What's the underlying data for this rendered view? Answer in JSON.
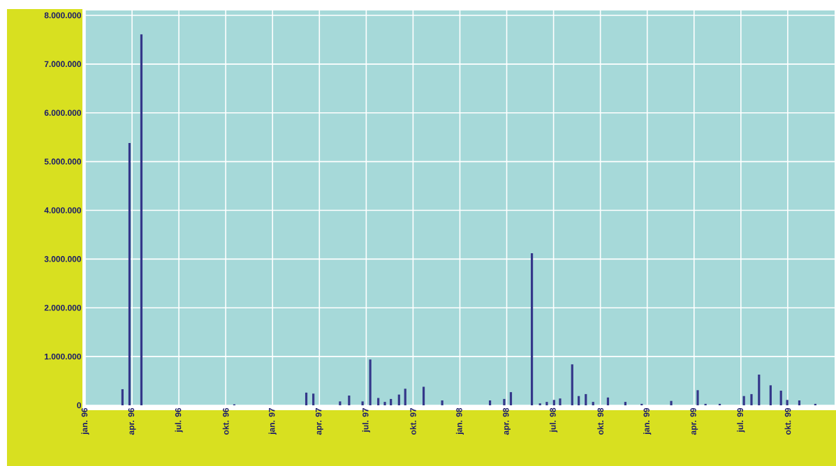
{
  "chart_data": {
    "type": "bar",
    "color": "#34378a",
    "grid": true,
    "x": [
      "1996-03-13",
      "1996-03-27",
      "1996-04-19",
      "1996-10-18",
      "1997-03-06",
      "1997-03-20",
      "1997-05-11",
      "1997-05-29",
      "1997-06-24",
      "1997-07-09",
      "1997-07-25",
      "1997-08-07",
      "1997-08-19",
      "1997-09-04",
      "1997-09-16",
      "1997-10-22",
      "1997-11-27",
      "1998-02-27",
      "1998-03-27",
      "1998-04-09",
      "1998-05-20",
      "1998-06-05",
      "1998-06-18",
      "1998-07-02",
      "1998-07-14",
      "1998-08-07",
      "1998-08-20",
      "1998-09-03",
      "1998-09-17",
      "1998-10-16",
      "1998-11-19",
      "1998-12-21",
      "1999-02-16",
      "1999-04-08",
      "1999-04-23",
      "1999-05-21",
      "1999-07-07",
      "1999-07-22",
      "1999-08-06",
      "1999-08-29",
      "1999-09-18",
      "1999-09-30",
      "1999-10-24",
      "1999-11-24"
    ],
    "values": [
      330000,
      5380000,
      7610000,
      20000,
      260000,
      240000,
      80000,
      200000,
      80000,
      940000,
      150000,
      70000,
      130000,
      220000,
      340000,
      380000,
      100000,
      100000,
      130000,
      270000,
      3120000,
      40000,
      70000,
      110000,
      140000,
      840000,
      190000,
      230000,
      70000,
      160000,
      70000,
      30000,
      90000,
      310000,
      30000,
      30000,
      190000,
      230000,
      630000,
      410000,
      300000,
      110000,
      100000,
      30000
    ],
    "xlim": [
      "1996-01",
      "2000-01"
    ],
    "ylim": [
      0,
      8100000
    ],
    "xticks": [
      {
        "value": "1996-01",
        "label": "jan. 96"
      },
      {
        "value": "1996-04",
        "label": "apr. 96"
      },
      {
        "value": "1996-07",
        "label": "jul. 96"
      },
      {
        "value": "1996-10",
        "label": "okt. 96"
      },
      {
        "value": "1997-01",
        "label": "jan. 97"
      },
      {
        "value": "1997-04",
        "label": "apr. 97"
      },
      {
        "value": "1997-07",
        "label": "jul. 97"
      },
      {
        "value": "1997-10",
        "label": "okt. 97"
      },
      {
        "value": "1998-01",
        "label": "jan. 98"
      },
      {
        "value": "1998-04",
        "label": "apr. 98"
      },
      {
        "value": "1998-07",
        "label": "jul. 98"
      },
      {
        "value": "1998-10",
        "label": "okt. 98"
      },
      {
        "value": "1999-01",
        "label": "jan. 99"
      },
      {
        "value": "1999-04",
        "label": "apr. 99"
      },
      {
        "value": "1999-07",
        "label": "jul. 99"
      },
      {
        "value": "1999-10",
        "label": "okt. 99"
      }
    ],
    "yticks": [
      0,
      {
        "value": 1000000,
        "label": "1.000.000"
      },
      {
        "value": 2000000,
        "label": "2.000.000"
      },
      {
        "value": 3000000,
        "label": "3.000.000"
      },
      {
        "value": 4000000,
        "label": "4.000.000"
      },
      {
        "value": 5000000,
        "label": "5.000.000"
      },
      {
        "value": 6000000,
        "label": "6.000.000"
      },
      {
        "value": 7000000,
        "label": "7.000.000"
      },
      {
        "value": 8000000,
        "label": "8.000.000"
      }
    ]
  }
}
